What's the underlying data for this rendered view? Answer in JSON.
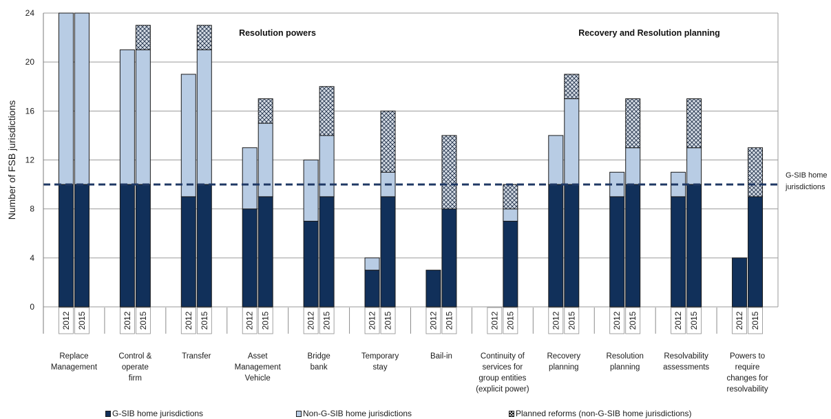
{
  "chart_data": {
    "type": "bar",
    "stacked": true,
    "ylabel": "Number of FSB jurisdictions",
    "ylim": [
      0,
      24
    ],
    "yticks": [
      0,
      4,
      8,
      12,
      16,
      20,
      24
    ],
    "grid": true,
    "section_labels": [
      "Resolution powers",
      "Recovery and Resolution planning"
    ],
    "reference_line": {
      "value": 10,
      "label_lines": [
        "G-SIB home",
        "jurisdictions"
      ]
    },
    "years": [
      "2012",
      "2015"
    ],
    "categories": [
      {
        "label_lines": [
          "Replace",
          "Management"
        ]
      },
      {
        "label_lines": [
          "Control &",
          "operate",
          "firm"
        ]
      },
      {
        "label_lines": [
          "Transfer"
        ]
      },
      {
        "label_lines": [
          "Asset",
          "Management",
          "Vehicle"
        ]
      },
      {
        "label_lines": [
          "Bridge",
          "bank"
        ]
      },
      {
        "label_lines": [
          "Temporary",
          "stay"
        ]
      },
      {
        "label_lines": [
          "Bail-in"
        ]
      },
      {
        "label_lines": [
          "Continuity of",
          "services for",
          "group entities",
          "(explicit power)"
        ]
      },
      {
        "label_lines": [
          "Recovery",
          "planning"
        ]
      },
      {
        "label_lines": [
          "Resolution",
          "planning"
        ]
      },
      {
        "label_lines": [
          "Resolvability",
          "assessments"
        ]
      },
      {
        "label_lines": [
          "Powers to",
          "require",
          "changes  for",
          "resolvability"
        ]
      }
    ],
    "series": [
      {
        "name": "G-SIB home jurisdictions",
        "color": "#11305a",
        "pattern": "solid",
        "values": [
          [
            10,
            10
          ],
          [
            10,
            10
          ],
          [
            9,
            10
          ],
          [
            8,
            9
          ],
          [
            7,
            9
          ],
          [
            3,
            9
          ],
          [
            3,
            8
          ],
          [
            0,
            7
          ],
          [
            10,
            10
          ],
          [
            9,
            10
          ],
          [
            9,
            10
          ],
          [
            4,
            9
          ]
        ]
      },
      {
        "name": "Non-G-SIB home jurisdictions",
        "color": "#b8cce4",
        "pattern": "solid",
        "values": [
          [
            14,
            14
          ],
          [
            11,
            11
          ],
          [
            10,
            11
          ],
          [
            5,
            6
          ],
          [
            5,
            5
          ],
          [
            1,
            2
          ],
          [
            0,
            0
          ],
          [
            0,
            1
          ],
          [
            4,
            7
          ],
          [
            2,
            3
          ],
          [
            2,
            3
          ],
          [
            0,
            0
          ]
        ]
      },
      {
        "name": "Planned reforms (non-G-SIB home jurisdictions)",
        "color": "#1a1a1a",
        "pattern": "crosshatch",
        "values": [
          [
            0,
            0
          ],
          [
            0,
            2
          ],
          [
            0,
            2
          ],
          [
            0,
            2
          ],
          [
            0,
            4
          ],
          [
            0,
            5
          ],
          [
            0,
            6
          ],
          [
            0,
            2
          ],
          [
            0,
            2
          ],
          [
            0,
            4
          ],
          [
            0,
            4
          ],
          [
            0,
            4
          ]
        ]
      }
    ]
  }
}
